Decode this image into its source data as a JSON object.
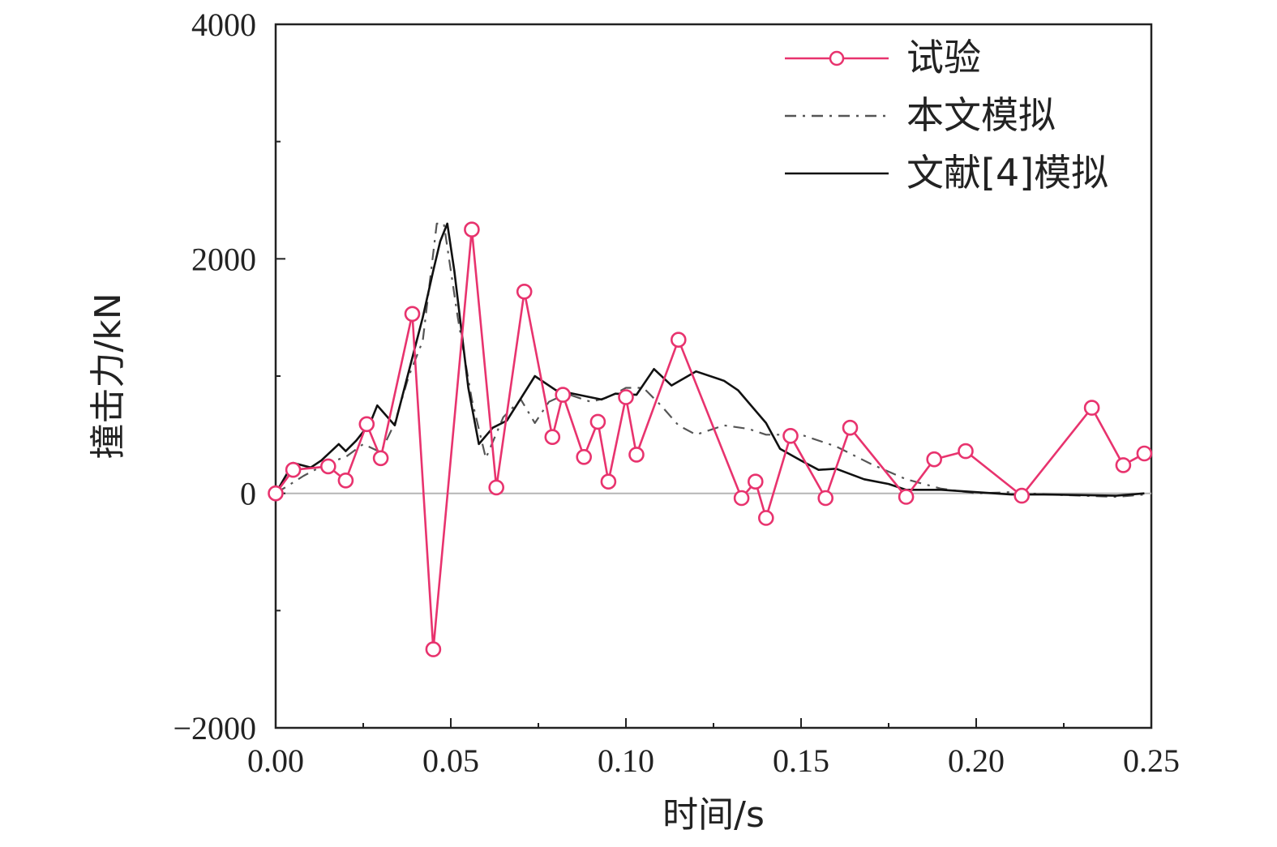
{
  "chart_data": {
    "type": "line",
    "xlabel": "时间/s",
    "ylabel": "撞击力/kN",
    "xlim": [
      0.0,
      0.25
    ],
    "ylim": [
      -2000,
      4000
    ],
    "xticks": [
      "0.00",
      "0.05",
      "0.10",
      "0.15",
      "0.20",
      "0.25"
    ],
    "yticks": [
      "−2000",
      "0",
      "2000",
      "4000"
    ],
    "legend_position": "top-right",
    "zero_line": true,
    "grid": false,
    "series": [
      {
        "name": "试验",
        "color": "#e8336e",
        "marker": "circle",
        "style": "solid",
        "points": [
          [
            0.0,
            0
          ],
          [
            0.005,
            200
          ],
          [
            0.015,
            230
          ],
          [
            0.02,
            110
          ],
          [
            0.026,
            590
          ],
          [
            0.03,
            300
          ],
          [
            0.039,
            1530
          ],
          [
            0.045,
            -1330
          ],
          [
            0.056,
            2250
          ],
          [
            0.063,
            50
          ],
          [
            0.071,
            1720
          ],
          [
            0.079,
            480
          ],
          [
            0.082,
            840
          ],
          [
            0.088,
            310
          ],
          [
            0.092,
            610
          ],
          [
            0.095,
            100
          ],
          [
            0.1,
            820
          ],
          [
            0.103,
            330
          ],
          [
            0.115,
            1310
          ],
          [
            0.133,
            -40
          ],
          [
            0.137,
            100
          ],
          [
            0.14,
            -210
          ],
          [
            0.147,
            490
          ],
          [
            0.157,
            -40
          ],
          [
            0.164,
            560
          ],
          [
            0.18,
            -30
          ],
          [
            0.188,
            290
          ],
          [
            0.197,
            360
          ],
          [
            0.213,
            -20
          ],
          [
            0.233,
            730
          ],
          [
            0.242,
            240
          ],
          [
            0.248,
            340
          ]
        ]
      },
      {
        "name": "本文模拟",
        "color": "#555555",
        "style": "dash-dot",
        "points": [
          [
            0.0,
            0
          ],
          [
            0.008,
            150
          ],
          [
            0.015,
            260
          ],
          [
            0.02,
            310
          ],
          [
            0.025,
            420
          ],
          [
            0.03,
            350
          ],
          [
            0.034,
            600
          ],
          [
            0.038,
            1000
          ],
          [
            0.042,
            1300
          ],
          [
            0.046,
            2300
          ],
          [
            0.048,
            2300
          ],
          [
            0.052,
            1500
          ],
          [
            0.056,
            800
          ],
          [
            0.06,
            300
          ],
          [
            0.065,
            650
          ],
          [
            0.07,
            800
          ],
          [
            0.074,
            600
          ],
          [
            0.078,
            780
          ],
          [
            0.083,
            850
          ],
          [
            0.09,
            780
          ],
          [
            0.095,
            820
          ],
          [
            0.1,
            900
          ],
          [
            0.105,
            900
          ],
          [
            0.11,
            750
          ],
          [
            0.115,
            580
          ],
          [
            0.12,
            500
          ],
          [
            0.128,
            580
          ],
          [
            0.135,
            550
          ],
          [
            0.14,
            500
          ],
          [
            0.15,
            500
          ],
          [
            0.16,
            400
          ],
          [
            0.17,
            250
          ],
          [
            0.18,
            120
          ],
          [
            0.19,
            40
          ],
          [
            0.2,
            0
          ],
          [
            0.21,
            10
          ],
          [
            0.22,
            -10
          ],
          [
            0.23,
            -20
          ],
          [
            0.24,
            -30
          ],
          [
            0.248,
            -10
          ]
        ]
      },
      {
        "name": "文献[4]模拟",
        "color": "#111111",
        "style": "solid",
        "points": [
          [
            0.0,
            0
          ],
          [
            0.005,
            260
          ],
          [
            0.01,
            220
          ],
          [
            0.013,
            280
          ],
          [
            0.018,
            420
          ],
          [
            0.02,
            360
          ],
          [
            0.023,
            450
          ],
          [
            0.027,
            600
          ],
          [
            0.029,
            750
          ],
          [
            0.034,
            580
          ],
          [
            0.042,
            1500
          ],
          [
            0.045,
            1900
          ],
          [
            0.047,
            2150
          ],
          [
            0.049,
            2300
          ],
          [
            0.051,
            1900
          ],
          [
            0.055,
            900
          ],
          [
            0.058,
            420
          ],
          [
            0.062,
            560
          ],
          [
            0.066,
            620
          ],
          [
            0.074,
            1000
          ],
          [
            0.08,
            880
          ],
          [
            0.093,
            800
          ],
          [
            0.097,
            850
          ],
          [
            0.103,
            840
          ],
          [
            0.108,
            1060
          ],
          [
            0.113,
            920
          ],
          [
            0.12,
            1040
          ],
          [
            0.128,
            960
          ],
          [
            0.132,
            880
          ],
          [
            0.14,
            600
          ],
          [
            0.144,
            380
          ],
          [
            0.15,
            280
          ],
          [
            0.155,
            200
          ],
          [
            0.16,
            210
          ],
          [
            0.168,
            120
          ],
          [
            0.175,
            80
          ],
          [
            0.18,
            30
          ],
          [
            0.19,
            30
          ],
          [
            0.2,
            10
          ],
          [
            0.21,
            -10
          ],
          [
            0.22,
            -10
          ],
          [
            0.24,
            -20
          ],
          [
            0.248,
            0
          ]
        ]
      }
    ]
  }
}
